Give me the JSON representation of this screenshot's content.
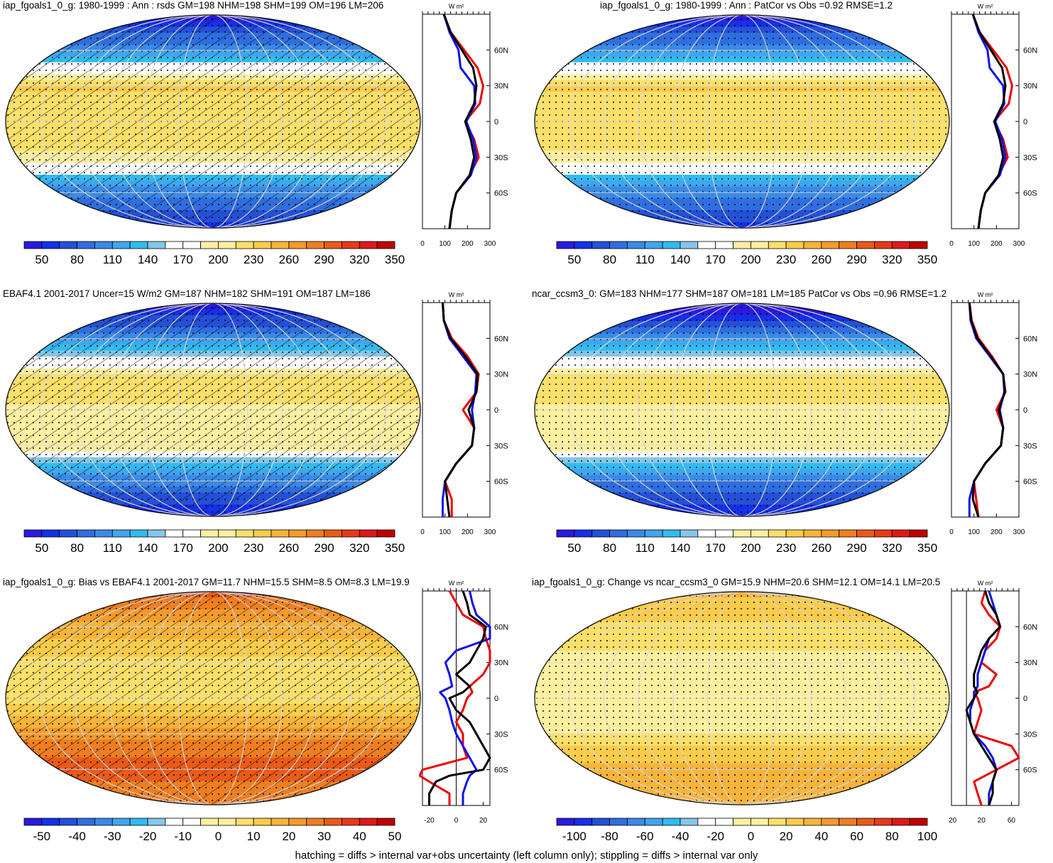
{
  "footnote": "hatching = diffs > internal var+obs uncertainty (left column only); stippling = diffs > internal var only",
  "colors": {
    "cbar_abs": [
      "#2a1ae0",
      "#1530e8",
      "#2450d8",
      "#2e6ee0",
      "#3a8ae8",
      "#40a6ee",
      "#30bcf0",
      "#86c6ea",
      "#ffffff",
      "#ffffff",
      "#fff0a0",
      "#fde06a",
      "#fbcc4a",
      "#f8b43a",
      "#f49a2a",
      "#f07e20",
      "#ea5a18",
      "#e63a18",
      "#e01818",
      "#c00000"
    ],
    "series_red": "#ee0000",
    "series_blue": "#1010ee",
    "series_black": "#000000"
  },
  "chart_data": [
    {
      "id": "p1",
      "type": "heatmap",
      "title": "iap_fgoals1_0_g: 1980-1999 : Ann : rsds GM=198 NHM=198 SHM=199 OM=196 LM=206",
      "colorbar_ticks": [
        "50",
        "80",
        "110",
        "140",
        "170",
        "200",
        "230",
        "260",
        "290",
        "320",
        "350"
      ],
      "field": {
        "np": 40,
        "sp": 55,
        "n_sub": 120,
        "eq": 235,
        "s_sub": 215,
        "s_mid": 120
      },
      "hatched": true,
      "profile": {
        "unit": "W m²",
        "xlim": [
          0,
          300
        ],
        "xticks": [
          "0",
          "100",
          "200",
          "300"
        ],
        "zero_line": false,
        "y_tick_labels": [
          "60N",
          "30N",
          "0",
          "30S",
          "60S"
        ],
        "lat": [
          90,
          75,
          60,
          45,
          30,
          15,
          0,
          -15,
          -30,
          -45,
          -60,
          -75,
          -90
        ],
        "red": [
          95,
          125,
          185,
          245,
          270,
          255,
          190,
          230,
          250,
          210,
          150,
          130,
          120
        ],
        "blue": [
          95,
          120,
          160,
          170,
          230,
          235,
          195,
          225,
          240,
          215,
          150,
          130,
          120
        ],
        "black": [
          95,
          125,
          175,
          225,
          240,
          230,
          190,
          215,
          230,
          210,
          150,
          130,
          120
        ]
      }
    },
    {
      "id": "p2",
      "type": "heatmap",
      "title": "iap_fgoals1_0_g: 1980-1999 : Ann : PatCor vs Obs =0.92 RMSE=1.2",
      "colorbar_ticks": [
        "50",
        "80",
        "110",
        "140",
        "170",
        "200",
        "230",
        "260",
        "290",
        "320",
        "350"
      ],
      "field": {
        "np": 40,
        "sp": 55,
        "n_sub": 120,
        "eq": 235,
        "s_sub": 215,
        "s_mid": 120
      },
      "hatched": false,
      "profile": {
        "unit": "W m²",
        "xlim": [
          0,
          300
        ],
        "xticks": [
          "0",
          "100",
          "200",
          "300"
        ],
        "zero_line": false,
        "y_tick_labels": [
          "60N",
          "30N",
          "0",
          "30S",
          "60S"
        ],
        "lat": [
          90,
          75,
          60,
          45,
          30,
          15,
          0,
          -15,
          -30,
          -45,
          -60,
          -75,
          -90
        ],
        "red": [
          95,
          125,
          185,
          245,
          270,
          255,
          190,
          230,
          250,
          210,
          150,
          130,
          120
        ],
        "blue": [
          95,
          120,
          160,
          170,
          230,
          235,
          195,
          225,
          240,
          215,
          150,
          130,
          120
        ],
        "black": [
          95,
          125,
          175,
          225,
          240,
          230,
          190,
          215,
          230,
          210,
          150,
          130,
          120
        ]
      }
    },
    {
      "id": "p3",
      "type": "heatmap",
      "title": "EBAF4.1 2001-2017 Uncer=15 W/m2 GM=187 NHM=182 SHM=191 OM=187 LM=186",
      "colorbar_ticks": [
        "50",
        "80",
        "110",
        "140",
        "170",
        "200",
        "230",
        "260",
        "290",
        "320",
        "350"
      ],
      "field": {
        "np": 40,
        "sp": 50,
        "n_sub": 115,
        "eq": 225,
        "s_sub": 215,
        "s_mid": 115
      },
      "hatched": true,
      "profile": {
        "unit": "W m²",
        "xlim": [
          0,
          300
        ],
        "xticks": [
          "0",
          "100",
          "200",
          "300"
        ],
        "zero_line": false,
        "y_tick_labels": [
          "60N",
          "30N",
          "0",
          "30S",
          "60S"
        ],
        "lat": [
          90,
          75,
          60,
          45,
          30,
          15,
          0,
          -15,
          -30,
          -45,
          -60,
          -75,
          -90
        ],
        "red": [
          90,
          95,
          130,
          200,
          250,
          240,
          180,
          230,
          220,
          150,
          100,
          130,
          130
        ],
        "blue": [
          90,
          95,
          120,
          180,
          240,
          235,
          220,
          230,
          220,
          150,
          100,
          90,
          90
        ],
        "black": [
          90,
          95,
          125,
          190,
          245,
          240,
          205,
          230,
          220,
          150,
          100,
          110,
          120
        ]
      }
    },
    {
      "id": "p4",
      "type": "heatmap",
      "title": "ncar_ccsm3_0: GM=183 NHM=177 SHM=187 OM=181 LM=185 PatCor vs Obs =0.96 RMSE=1.2",
      "colorbar_ticks": [
        "50",
        "80",
        "110",
        "140",
        "170",
        "200",
        "230",
        "260",
        "290",
        "320",
        "350"
      ],
      "field": {
        "np": 30,
        "sp": 50,
        "n_sub": 110,
        "eq": 225,
        "s_sub": 215,
        "s_mid": 110
      },
      "hatched": false,
      "profile": {
        "unit": "W m²",
        "xlim": [
          0,
          300
        ],
        "xticks": [
          "0",
          "100",
          "200",
          "300"
        ],
        "zero_line": false,
        "y_tick_labels": [
          "60N",
          "30N",
          "0",
          "30S",
          "60S"
        ],
        "lat": [
          90,
          75,
          60,
          45,
          30,
          15,
          0,
          -15,
          -30,
          -45,
          -60,
          -75,
          -90
        ],
        "red": [
          80,
          90,
          120,
          180,
          230,
          240,
          200,
          230,
          220,
          150,
          100,
          110,
          120
        ],
        "blue": [
          80,
          85,
          110,
          170,
          230,
          235,
          215,
          230,
          220,
          150,
          100,
          80,
          80
        ],
        "black": [
          80,
          88,
          115,
          175,
          230,
          238,
          210,
          230,
          220,
          150,
          100,
          95,
          120
        ]
      }
    },
    {
      "id": "p5",
      "type": "heatmap",
      "title": "iap_fgoals1_0_g: Bias vs EBAF4.1 2001-2017 GM=11.7 NHM=15.5 SHM=8.5 OM=8.3 LM=19.9",
      "colorbar_ticks": [
        "-50",
        "-40",
        "-30",
        "-20",
        "-10",
        "0",
        "10",
        "20",
        "30",
        "40",
        "50"
      ],
      "field": {
        "np": 35,
        "sp": 30,
        "n_sub": 20,
        "eq": 8,
        "s_sub": 25,
        "s_mid": 35
      },
      "hatched": true,
      "profile": {
        "unit": "W m²",
        "xlim": [
          -25,
          25
        ],
        "xticks": [
          "-20",
          "0",
          "20"
        ],
        "zero_line": true,
        "y_tick_labels": [
          "60N",
          "30N",
          "0",
          "30S",
          "60S"
        ],
        "lat": [
          90,
          80,
          70,
          60,
          50,
          40,
          30,
          20,
          10,
          5,
          0,
          -10,
          -20,
          -30,
          -40,
          -50,
          -60,
          -65,
          -70,
          -80,
          -90
        ],
        "red": [
          -5,
          0,
          5,
          20,
          22,
          25,
          25,
          20,
          10,
          12,
          8,
          5,
          0,
          5,
          5,
          8,
          -25,
          -30,
          -20,
          -5,
          -5
        ],
        "blue": [
          10,
          12,
          15,
          25,
          25,
          0,
          -8,
          -5,
          -3,
          -12,
          -8,
          -5,
          -3,
          0,
          5,
          10,
          15,
          10,
          8,
          5,
          5
        ],
        "black": [
          5,
          8,
          10,
          22,
          20,
          15,
          10,
          0,
          10,
          5,
          -5,
          0,
          10,
          15,
          20,
          25,
          20,
          -5,
          -15,
          -20,
          -20
        ]
      }
    },
    {
      "id": "p6",
      "type": "heatmap",
      "title": "iap_fgoals1_0_g: Change vs ncar_ccsm3_0 GM=15.9 NHM=20.6 SHM=12.1 OM=14.1 LM=20.5",
      "colorbar_ticks": [
        "-100",
        "-80",
        "-60",
        "-40",
        "-20",
        "0",
        "20",
        "40",
        "60",
        "80",
        "100"
      ],
      "field": {
        "np": 35,
        "sp": 35,
        "n_sub": 18,
        "eq": 8,
        "s_sub": 10,
        "s_mid": 35
      },
      "hatched": false,
      "profile": {
        "unit": "W m²",
        "xlim": [
          -20,
          70
        ],
        "xticks": [
          "-20",
          "20",
          "60"
        ],
        "zero_line": true,
        "y_tick_labels": [
          "60N",
          "30N",
          "0",
          "30S",
          "60S"
        ],
        "lat": [
          90,
          80,
          70,
          60,
          50,
          40,
          30,
          20,
          10,
          5,
          0,
          -10,
          -20,
          -30,
          -40,
          -50,
          -60,
          -70,
          -80,
          -90
        ],
        "red": [
          25,
          20,
          30,
          45,
          40,
          25,
          20,
          40,
          30,
          10,
          15,
          20,
          15,
          10,
          60,
          70,
          40,
          10,
          15,
          20
        ],
        "blue": [
          30,
          35,
          40,
          45,
          30,
          25,
          20,
          15,
          15,
          10,
          10,
          5,
          5,
          10,
          25,
          35,
          40,
          35,
          30,
          30
        ],
        "black": [
          25,
          30,
          40,
          45,
          30,
          20,
          15,
          10,
          10,
          15,
          10,
          0,
          5,
          10,
          20,
          30,
          40,
          35,
          35,
          30
        ]
      }
    }
  ]
}
